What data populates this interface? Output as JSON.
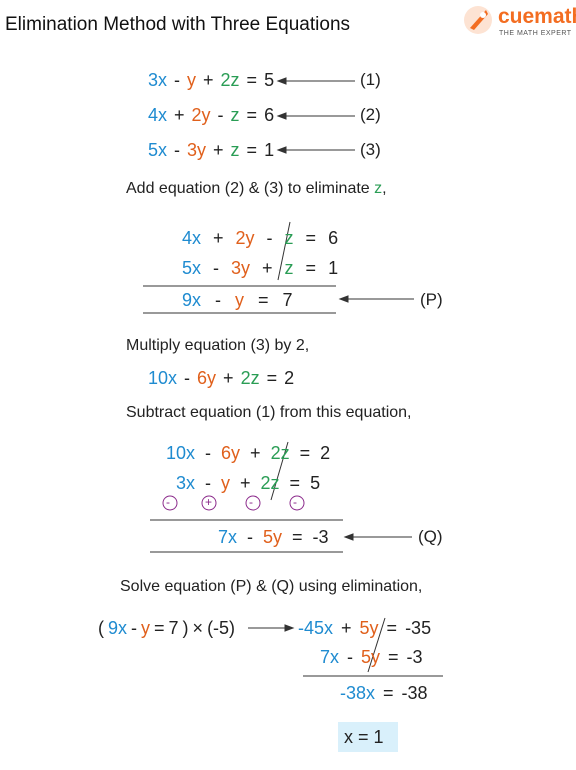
{
  "header": {
    "title": "Elimination Method with Three Equations",
    "brand": "cuemath",
    "tagline": "THE MATH EXPERT"
  },
  "equations": [
    {
      "terms": [
        "3x",
        "-",
        "y",
        "+",
        "2z",
        "=",
        "5"
      ],
      "label": "(1)"
    },
    {
      "terms": [
        "4x",
        "+",
        "2y",
        "-",
        "z",
        "=",
        "6"
      ],
      "label": "(2)"
    },
    {
      "terms": [
        "5x",
        "-",
        "3y",
        "+",
        "z",
        "=",
        "1"
      ],
      "label": "(3)"
    }
  ],
  "step1": {
    "text": [
      "Add equation (2) & (3) to eliminate ",
      "z",
      ","
    ],
    "rows": [
      [
        "4x",
        "+",
        "2y",
        "-",
        "z",
        "=",
        "6"
      ],
      [
        "5x",
        "-",
        "3y",
        "+",
        "z",
        "=",
        "1"
      ]
    ],
    "result": [
      "9x",
      "-",
      "y",
      "=",
      "7"
    ],
    "label": "(P)"
  },
  "step2": {
    "text": "Multiply equation (3) by 2,",
    "equation": [
      "10x",
      "-",
      "6y",
      "+",
      "2z",
      "=",
      "2"
    ]
  },
  "step3": {
    "text": "Subtract equation (1) from this equation,",
    "rows": [
      [
        "10x",
        "-",
        "6y",
        "+",
        "2z",
        "=",
        "2"
      ],
      [
        "3x",
        "-",
        "y",
        "+",
        "2z",
        "=",
        "5"
      ]
    ],
    "signs": [
      "-",
      "+",
      "-",
      "-"
    ],
    "result": [
      "7x",
      "-",
      "5y",
      "=",
      "-3"
    ],
    "label": "(Q)"
  },
  "step4": {
    "text": "Solve equation (P) & (Q) using elimination,",
    "multiply": [
      "(",
      "9x",
      "-",
      "y",
      "=",
      "7",
      ")",
      "×",
      "(-5)"
    ],
    "rows": [
      [
        "-45x",
        "+",
        "5y",
        "=",
        "-35"
      ],
      [
        "7x",
        "-",
        "5y",
        "=",
        "-3"
      ]
    ],
    "result": [
      "-38x",
      "=",
      "-38"
    ],
    "answer": "x = 1"
  }
}
